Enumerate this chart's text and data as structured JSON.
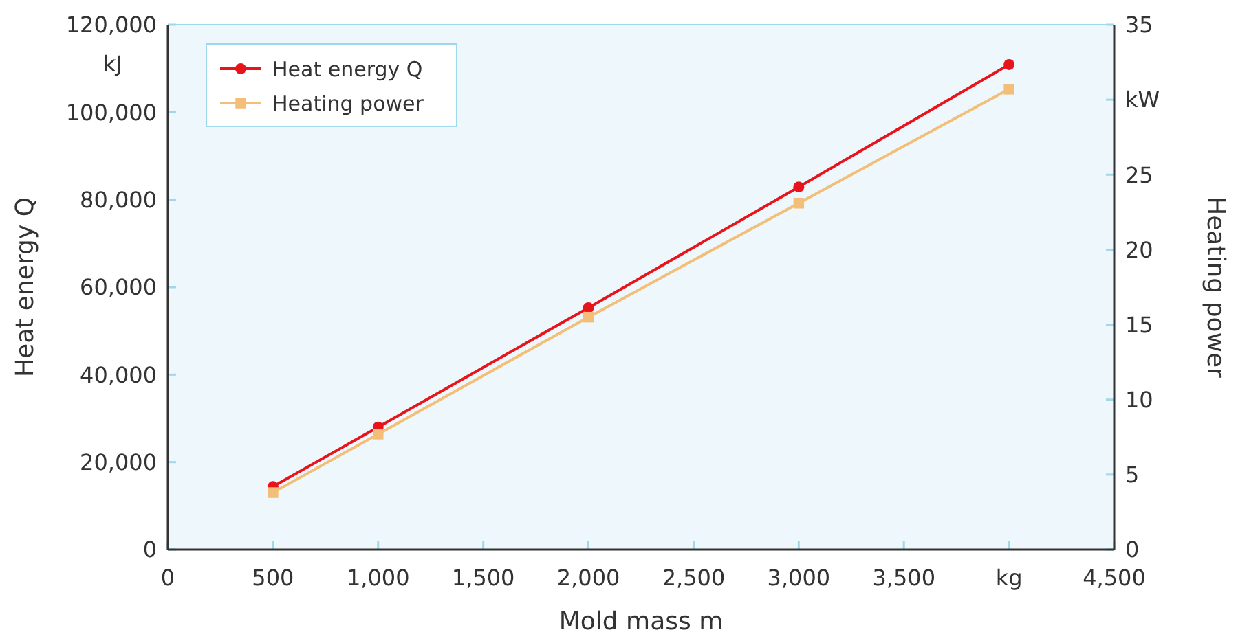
{
  "chart_data": {
    "type": "line",
    "xlabel": "Mold mass m",
    "ylabel": "Heat energy Q",
    "y2label": "Heating power",
    "x": [
      500,
      1000,
      2000,
      3000,
      4000
    ],
    "series": [
      {
        "name": "Heat energy Q",
        "color": "#e8141c",
        "values": [
          14400,
          28000,
          55300,
          82900,
          110900
        ],
        "marker": "circle"
      },
      {
        "name": "Heating power",
        "color": "#f3bf78",
        "values": [
          3.8,
          7.7,
          15.5,
          23.1,
          30.7
        ],
        "axis": "y2",
        "marker": "square"
      }
    ],
    "xlim": [
      0,
      4500
    ],
    "xticks": [
      0,
      {
        "value": 500,
        "label": "500"
      },
      {
        "value": 1000,
        "label": "1,000"
      },
      {
        "value": 1500,
        "label": "1,500"
      },
      {
        "value": 2000,
        "label": "2,000"
      },
      {
        "value": 2500,
        "label": "2,500"
      },
      {
        "value": 3000,
        "label": "3,000"
      },
      {
        "value": 3500,
        "label": "3,500"
      },
      {
        "value": 4000,
        "label": "kg"
      },
      {
        "value": 4500,
        "label": "4,500"
      }
    ],
    "ylim": [
      0,
      120000
    ],
    "yticks": [
      0,
      {
        "value": 20000,
        "label": "20,000"
      },
      {
        "value": 40000,
        "label": "40,000"
      },
      {
        "value": 60000,
        "label": "60,000"
      },
      {
        "value": 80000,
        "label": "80,000"
      },
      {
        "value": 100000,
        "label": "100,000"
      },
      {
        "value": 120000,
        "label": "120,000"
      }
    ],
    "y2lim": [
      0,
      35
    ],
    "y2ticks": [
      0,
      5,
      10,
      15,
      20,
      25,
      {
        "value": 30,
        "label": "kW"
      },
      35
    ],
    "annotations": [
      "kJ"
    ],
    "legend": "top left",
    "grid": false
  }
}
